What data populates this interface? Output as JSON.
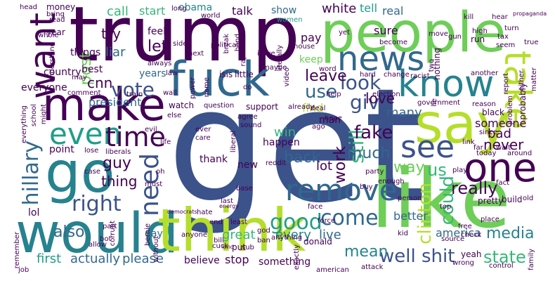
{
  "palette": {
    "background": "#ffffff",
    "dark_purple": "#440154",
    "indigo": "#3b528b",
    "slate_blue": "#31688e",
    "teal_blue": "#26828e",
    "teal": "#1f9e89",
    "green": "#35b779",
    "lime": "#6ece58",
    "yellow_green": "#b5de2b"
  },
  "words": {
    "get": "get",
    "trump": "trump",
    "people": "people",
    "like": "like",
    "would": "would",
    "think": "think",
    "fuck": "fuck",
    "say": "say",
    "make": "make",
    "go": "go",
    "know": "know",
    "one": "one",
    "remove": "remove",
    "news": "news",
    "want": "want",
    "take": "take",
    "even": "even",
    "time": "time",
    "see": "see",
    "need": "need",
    "right": "right",
    "good": "good",
    "come": "come",
    "vote": "vote",
    "look": "look",
    "give": "give",
    "use": "use",
    "cnn": "cnn",
    "president": "president",
    "post": "post",
    "liar": "liar",
    "let": "let",
    "try": "try",
    "fake": "fake",
    "still": "still",
    "clinton": "clinton",
    "could": "could",
    "really": "really",
    "hillary": "hillary",
    "well": "well",
    "shit": "shit",
    "state": "state",
    "mean": "mean",
    "also": "also",
    "much": "much",
    "way": "way",
    "us": "us",
    "back": "back",
    "work": "work",
    "never": "never",
    "guy": "guy",
    "thing": "thing",
    "love": "love",
    "leave": "leave",
    "find": "find",
    "many": "many",
    "win": "win",
    "bad": "bad",
    "lot": "lot",
    "someone": "someone",
    "better": "better",
    "america": "america",
    "media": "media",
    "every": "every",
    "live": "live",
    "great": "great",
    "first": "first",
    "actually": "actually",
    "please": "please",
    "believe": "believe",
    "stop": "stop",
    "something": "something",
    "sure": "sure",
    "call": "call",
    "start": "start",
    "white": "white",
    "tell": "tell",
    "real": "real",
    "show": "show",
    "talk": "talk",
    "pay": "pay",
    "keep": "keep",
    "best": "best",
    "years": "years",
    "feel": "feel",
    "obama": "obama",
    "everyone": "everyone",
    "country": "country",
    "happen": "happen",
    "man": "man",
    "point": "point",
    "lol": "lol",
    "day": "day",
    "new": "new",
    "thank": "thank",
    "things": "things",
    "year": "year",
    "money": "money",
    "bring": "bring",
    "world": "world",
    "women": "women",
    "head": "head",
    "read": "read",
    "long": "long",
    "isis": "isis",
    "little": "little",
    "law": "law",
    "said": "said",
    "always": "always",
    "watch": "watch",
    "question": "question",
    "support": "support",
    "already": "already",
    "else": "else",
    "ever": "ever",
    "care": "care",
    "news_small": "wait",
    "since": "since",
    "around": "around",
    "today": "today",
    "link": "link",
    "play": "play",
    "fact": "fact",
    "old": "old",
    "build": "build",
    "pretty": "pretty",
    "top": "top",
    "person": "person",
    "place": "place",
    "free": "free",
    "source": "source",
    "check": "check",
    "family": "family",
    "control": "control",
    "wrong": "wrong",
    "yeah": "yeah",
    "attack": "attack",
    "american": "american",
    "exactly": "exactly",
    "ban": "ban",
    "sub": "sub",
    "kind": "kind",
    "put": "put",
    "bill": "bill",
    "god": "god",
    "least": "least",
    "end": "end",
    "cuck": "cuck",
    "corrupt": "corrupt",
    "anyone": "anyone",
    "must": "must",
    "bernie": "bernie",
    "without": "without",
    "hate": "hate",
    "base": "base",
    "last": "last",
    "job": "job",
    "allow": "allow",
    "bot": "bot",
    "part": "part",
    "remember": "remember",
    "case": "case",
    "oh": "oh",
    "lose": "lose",
    "liberals": "liberals",
    "evil": "evil",
    "school": "school",
    "everything": "everything",
    "might": "might",
    "comment": "comment",
    "train": "train",
    "understand": "understand",
    "may": "may",
    "whole": "whole",
    "far": "far",
    "reason": "reason",
    "government": "government",
    "black": "black",
    "problem": "problem",
    "probably": "probably",
    "either": "either",
    "matter": "matter",
    "report": "report",
    "another": "another",
    "nothing": "nothing",
    "two": "two",
    "racist": "racist",
    "hard": "hard",
    "change": "change",
    "election": "election",
    "deal": "deal",
    "help": "help",
    "hope": "hope",
    "ago": "ago",
    "word": "word",
    "maybe": "maybe",
    "literally": "literally",
    "video": "video",
    "issue": "issue",
    "rapist": "rapist",
    "political": "political",
    "house": "house",
    "break": "break",
    "next": "next",
    "power": "power",
    "name": "name",
    "do": "do",
    "become": "become",
    "move": "move",
    "gun": "gun",
    "high": "high",
    "run": "run",
    "kill": "kill",
    "hear": "hear",
    "propaganda": "propaganda",
    "turn": "turn",
    "tax": "tax",
    "seem": "seem",
    "true": "true",
    "side": "side",
    "yet": "yet",
    "hand": "hand",
    "life": "life",
    "wall": "wall",
    "agree": "agree",
    "sound": "sound",
    "liberal": "liberal",
    "reddit": "reddit",
    "party": "party",
    "enough": "enough",
    "buy": "buy",
    "force": "force",
    "donald": "donald",
    "kid": "kid",
    "anything": "anything",
    "democrats": "democrats",
    "energy": "energy",
    "face": "face",
    "lie": "lie"
  }
}
